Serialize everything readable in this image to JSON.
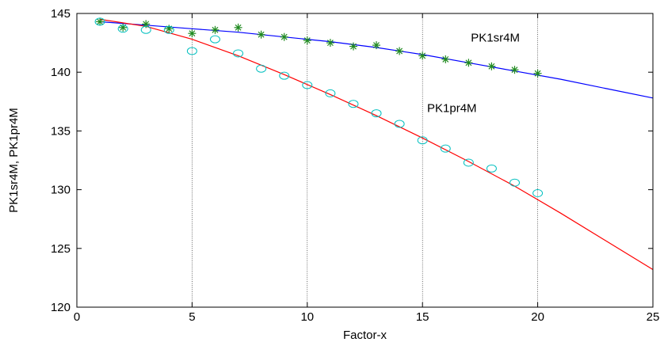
{
  "chart_data": {
    "type": "scatter",
    "title": "",
    "xlabel": "Factor-x",
    "ylabel": "PK1sr4M, PK1pr4M",
    "xlim": [
      0,
      25
    ],
    "ylim": [
      120,
      145
    ],
    "x_ticks": [
      0,
      5,
      10,
      15,
      20,
      25
    ],
    "y_ticks": [
      120,
      125,
      130,
      135,
      140,
      145
    ],
    "grid": "vertical",
    "annotations": [
      {
        "text": "PK1sr4M",
        "x": 17.1,
        "y": 142.6
      },
      {
        "text": "PK1pr4M",
        "x": 15.2,
        "y": 136.6
      }
    ],
    "series": [
      {
        "name": "PK1sr4M",
        "kind": "points",
        "marker": "asterisk",
        "color": "#1f8a1f",
        "x": [
          1,
          2,
          3,
          4,
          5,
          6,
          7,
          8,
          9,
          10,
          11,
          12,
          13,
          14,
          15,
          16,
          17,
          18,
          19,
          20
        ],
        "y": [
          144.3,
          143.8,
          144.1,
          143.7,
          143.3,
          143.6,
          143.8,
          143.2,
          143.0,
          142.7,
          142.5,
          142.2,
          142.3,
          141.8,
          141.4,
          141.1,
          140.8,
          140.5,
          140.2,
          139.9
        ]
      },
      {
        "name": "PK1pr4M",
        "kind": "points",
        "marker": "circle",
        "color": "#00bfbf",
        "x": [
          1,
          2,
          3,
          4,
          5,
          6,
          7,
          8,
          9,
          10,
          11,
          12,
          13,
          14,
          15,
          16,
          17,
          18,
          19,
          20
        ],
        "y": [
          144.3,
          143.7,
          143.6,
          143.6,
          141.8,
          142.8,
          141.6,
          140.3,
          139.7,
          138.9,
          138.2,
          137.3,
          136.5,
          135.6,
          134.2,
          133.5,
          132.3,
          131.8,
          130.6,
          129.7
        ]
      },
      {
        "name": "PK1sr4M",
        "kind": "fit",
        "color": "#0000ff",
        "x": [
          1,
          3,
          5,
          7,
          9,
          11,
          13,
          15,
          17,
          19,
          21,
          23,
          25
        ],
        "y": [
          144.3,
          144.0,
          143.7,
          143.4,
          143.0,
          142.6,
          142.1,
          141.5,
          140.8,
          140.1,
          139.4,
          138.6,
          137.8
        ]
      },
      {
        "name": "PK1pr4M",
        "kind": "fit",
        "color": "#ff0000",
        "x": [
          1,
          3,
          5,
          7,
          9,
          11,
          13,
          15,
          17,
          19,
          21,
          23,
          25
        ],
        "y": [
          144.5,
          143.9,
          142.8,
          141.4,
          139.8,
          138.1,
          136.3,
          134.4,
          132.4,
          130.3,
          128.0,
          125.6,
          123.2
        ]
      }
    ]
  }
}
